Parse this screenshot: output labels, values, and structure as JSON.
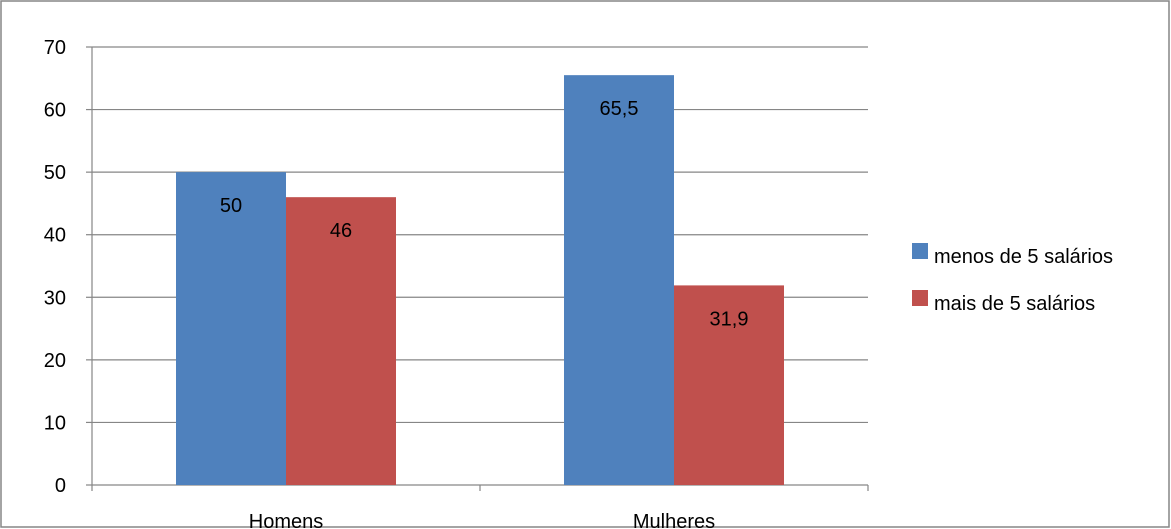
{
  "chart_data": {
    "type": "bar",
    "categories": [
      "Homens",
      "Mulheres"
    ],
    "series": [
      {
        "name": "menos de 5 salários",
        "values": [
          50,
          65.5
        ],
        "labels": [
          "50",
          "65,5"
        ],
        "color": "#4F81BD"
      },
      {
        "name": "mais de 5 salários",
        "values": [
          46,
          31.9
        ],
        "labels": [
          "46",
          "31,9"
        ],
        "color": "#C0504D"
      }
    ],
    "yticks": [
      0,
      10,
      20,
      30,
      40,
      50,
      60,
      70
    ],
    "ylim": [
      0,
      70
    ],
    "grid": true,
    "legend": "right"
  }
}
